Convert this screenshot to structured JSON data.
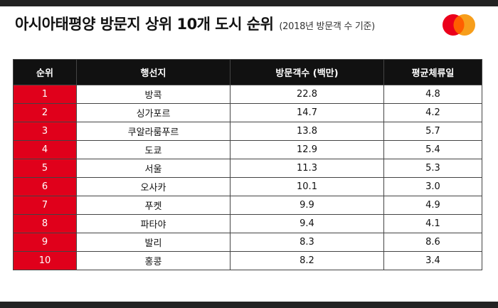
{
  "header": {
    "title": "아시아태평양 방문지 상위 10개 도시 순위",
    "subtitle": "(2018년 방문객 수 기준)"
  },
  "logo": {
    "icon": "mastercard-logo",
    "left_color": "#eb001b",
    "right_color": "#f79e1b"
  },
  "colors": {
    "accent": "#e0001b",
    "header_bg": "#111111"
  },
  "table": {
    "columns": [
      "순위",
      "행선지",
      "방문객수 (백만)",
      "평균체류일"
    ],
    "rows": [
      {
        "rank": "1",
        "city": "방콕",
        "visitors": "22.8",
        "stay": "4.8"
      },
      {
        "rank": "2",
        "city": "싱가포르",
        "visitors": "14.7",
        "stay": "4.2"
      },
      {
        "rank": "3",
        "city": "쿠알라룸푸르",
        "visitors": "13.8",
        "stay": "5.7"
      },
      {
        "rank": "4",
        "city": "도쿄",
        "visitors": "12.9",
        "stay": "5.4"
      },
      {
        "rank": "5",
        "city": "서울",
        "visitors": "11.3",
        "stay": "5.3"
      },
      {
        "rank": "6",
        "city": "오사카",
        "visitors": "10.1",
        "stay": "3.0"
      },
      {
        "rank": "7",
        "city": "푸켓",
        "visitors": "9.9",
        "stay": "4.9"
      },
      {
        "rank": "8",
        "city": "파타야",
        "visitors": "9.4",
        "stay": "4.1"
      },
      {
        "rank": "9",
        "city": "발리",
        "visitors": "8.3",
        "stay": "8.6"
      },
      {
        "rank": "10",
        "city": "홍콩",
        "visitors": "8.2",
        "stay": "3.4"
      }
    ]
  }
}
